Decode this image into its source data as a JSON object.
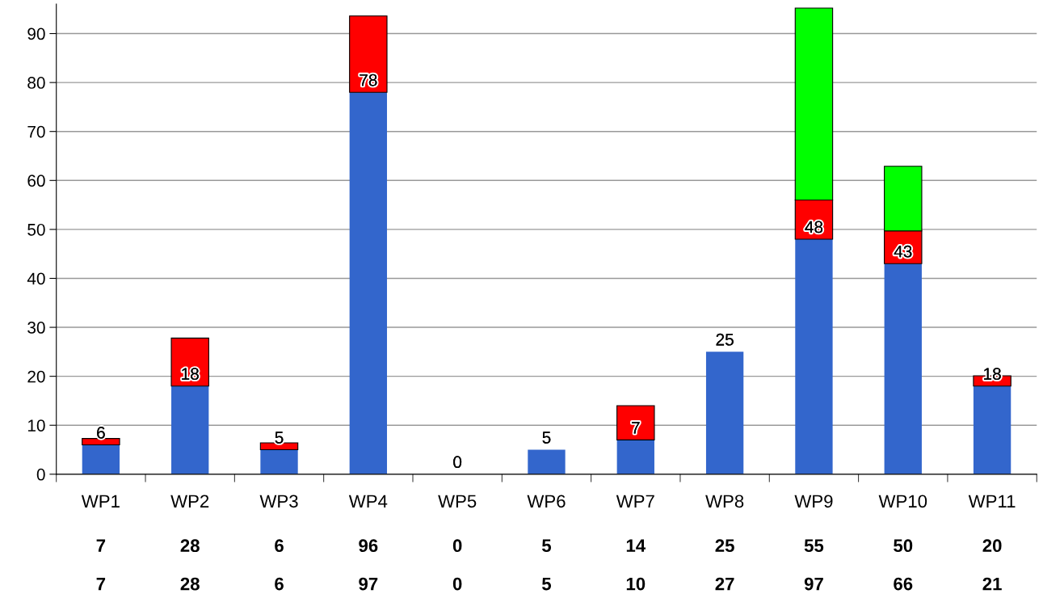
{
  "chart_data": {
    "type": "bar",
    "stacked": true,
    "categories": [
      "WP1",
      "WP2",
      "WP3",
      "WP4",
      "WP5",
      "WP6",
      "WP7",
      "WP8",
      "WP9",
      "WP10",
      "WP11"
    ],
    "series": [
      {
        "color": "#3366cc",
        "values": [
          6,
          18,
          5,
          78,
          0,
          5,
          7,
          25,
          48,
          43,
          18
        ],
        "value_labels": [
          "6",
          "18",
          "5",
          "78",
          "0",
          "5",
          "7",
          "25",
          "48",
          "43",
          "18"
        ]
      },
      {
        "color": "#ff0000",
        "values": [
          1.3,
          9.8,
          1.4,
          15.6,
          null,
          null,
          7,
          null,
          8,
          6.7,
          2.1
        ]
      },
      {
        "color": "#00ff00",
        "values": [
          null,
          null,
          null,
          null,
          null,
          null,
          null,
          null,
          39.2,
          13.2,
          null
        ]
      }
    ],
    "ylim": [
      0,
      96
    ],
    "yticks": [
      0,
      10,
      20,
      30,
      40,
      50,
      60,
      70,
      80,
      90
    ],
    "grid": "y",
    "legend": false,
    "annotations": [
      "7",
      "28",
      "6",
      "96",
      "0",
      "5",
      "14",
      "25",
      "55",
      "50",
      "20",
      "7",
      "28",
      "6",
      "97",
      "0",
      "5",
      "10",
      "27",
      "97",
      "66",
      "21"
    ]
  }
}
